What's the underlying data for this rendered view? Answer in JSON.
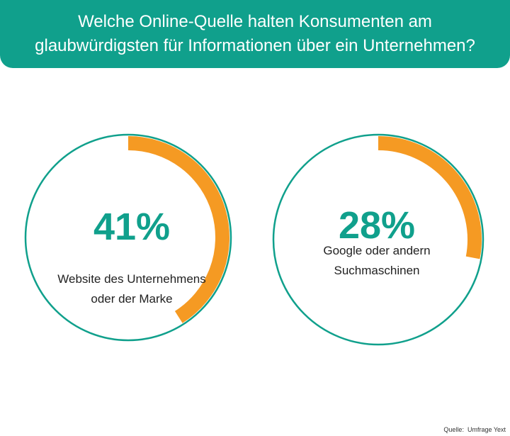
{
  "colors": {
    "teal": "#10a08c",
    "orange": "#f59a23",
    "text": "#222222",
    "header_text": "#ffffff"
  },
  "header": {
    "line1": "Welche Online-Quelle halten Konsumenten am",
    "line2": "glaubwürdigsten für Informationen über ein Unternehmen?"
  },
  "chart_data": [
    {
      "type": "pie",
      "value": 41,
      "value_label": "41%",
      "label_lines": [
        "Website des Unternehmens",
        "oder der Marke"
      ]
    },
    {
      "type": "pie",
      "value": 28,
      "value_label": "28%",
      "label_lines": [
        "Google oder andern",
        "Suchmaschinen"
      ]
    }
  ],
  "source": {
    "prefix": "Quelle:",
    "name": "Umfrage Yext"
  }
}
